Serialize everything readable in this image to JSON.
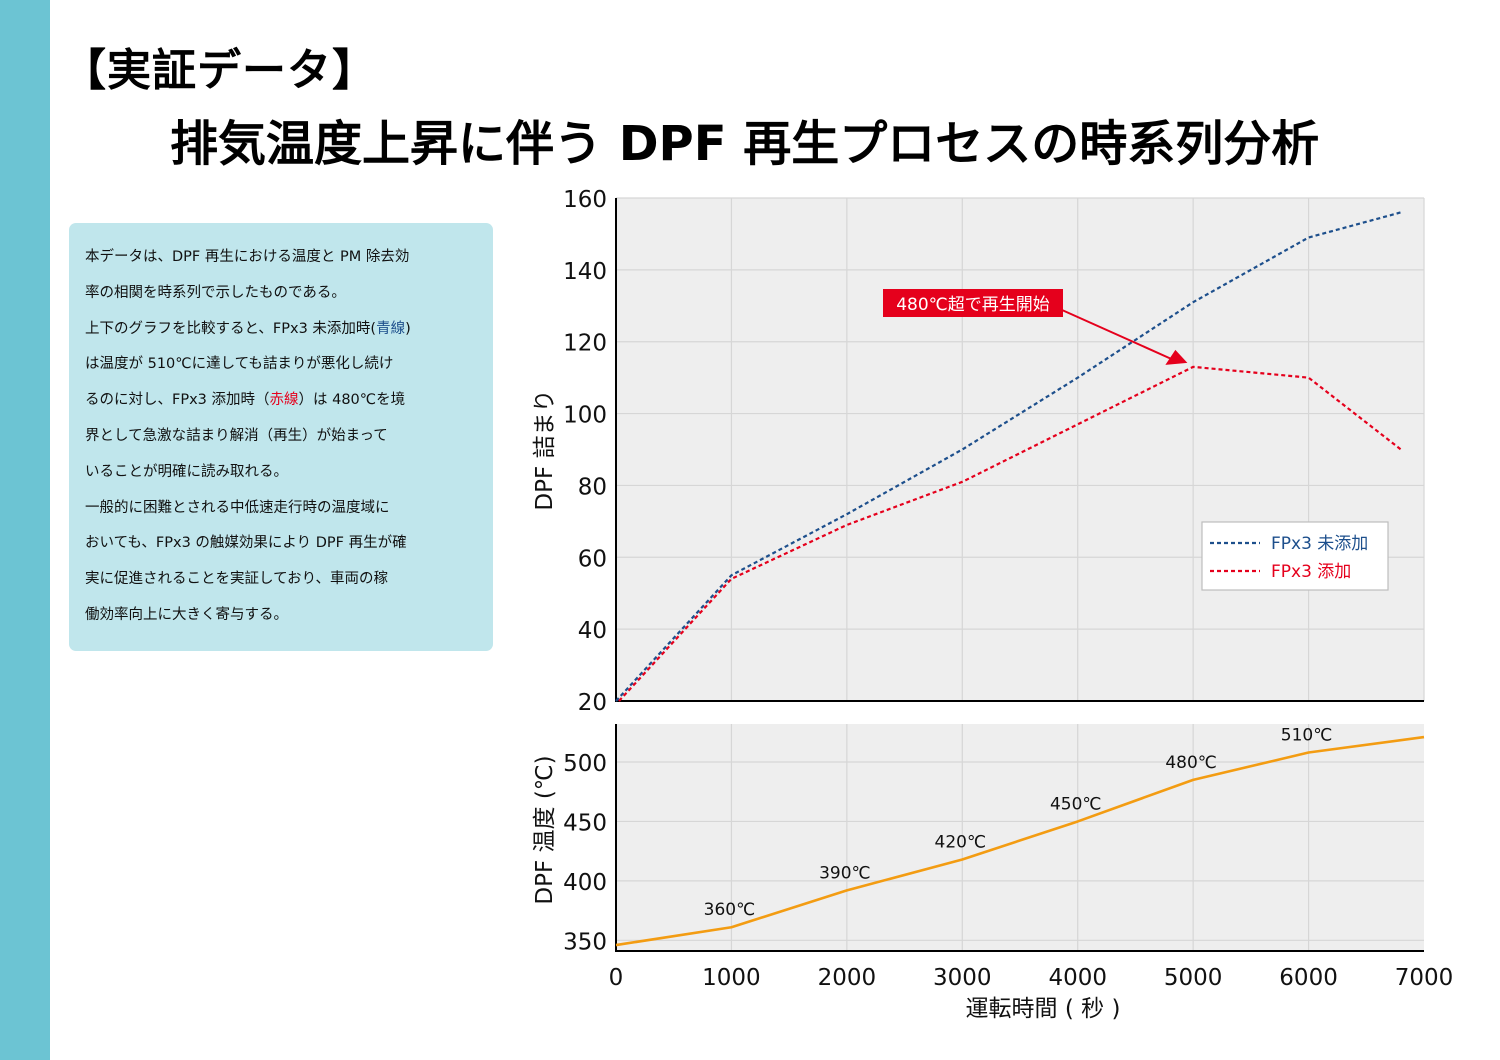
{
  "header": {
    "title_line1": "【実証データ】",
    "title_line2": "排気温度上昇に伴う DPF 再生プロセスの時系列分析"
  },
  "description": {
    "lines": [
      [
        {
          "t": "本データは、DPF 再生における温度と PM 除去効"
        }
      ],
      [
        {
          "t": "率の相関を時系列で示したものである。"
        }
      ],
      [
        {
          "t": "上下のグラフを比較すると、FPx3 未添加時("
        },
        {
          "t": "青線",
          "c": "blue"
        },
        {
          "t": ")"
        }
      ],
      [
        {
          "t": "は温度が 510℃に達しても詰まりが悪化し続け"
        }
      ],
      [
        {
          "t": "るのに対し、FPx3 添加時（"
        },
        {
          "t": "赤線",
          "c": "red"
        },
        {
          "t": "）は 480℃を境"
        }
      ],
      [
        {
          "t": "界として急激な詰まり解消（再生）が始まって"
        }
      ],
      [
        {
          "t": "いることが明確に読み取れる。"
        }
      ],
      [
        {
          "t": "一般的に困難とされる中低速走行時の温度域に"
        }
      ],
      [
        {
          "t": "おいても、FPx3 の触媒効果により DPF 再生が確"
        }
      ],
      [
        {
          "t": "実に促進されることを実証しており、車両の稼"
        }
      ],
      [
        {
          "t": "働効率向上に大きく寄与する。"
        }
      ]
    ]
  },
  "colors": {
    "blue": "#1d4f8c",
    "red": "#e5001c",
    "orange": "#f39c12",
    "plot_bg": "#eeeeee",
    "grid": "#d6d6d6"
  },
  "chart_data": [
    {
      "type": "line",
      "title": "",
      "xlabel": "",
      "ylabel": "DPF 詰まり",
      "xlim": [
        0,
        7000
      ],
      "ylim": [
        20,
        160
      ],
      "yticks": [
        20,
        40,
        60,
        80,
        100,
        120,
        140,
        160
      ],
      "xgrid": [
        1000,
        2000,
        3000,
        4000,
        5000,
        6000
      ],
      "grid": true,
      "legend_position": "right",
      "series": [
        {
          "name": "FPx3 未添加",
          "color_key": "blue",
          "style": "dotted",
          "x": [
            0,
            1000,
            2000,
            3000,
            4000,
            5000,
            6000,
            6800
          ],
          "y": [
            20,
            55,
            72,
            90,
            110,
            131,
            149,
            156
          ]
        },
        {
          "name": "FPx3 添加",
          "color_key": "red",
          "style": "dotted",
          "x": [
            0,
            1000,
            2000,
            3000,
            4000,
            5000,
            6000,
            6800
          ],
          "y": [
            20,
            54,
            69,
            81,
            97,
            113,
            110,
            90
          ]
        }
      ],
      "annotation": {
        "text": "480℃超で再生開始",
        "target_x": 4950,
        "target_y": 113
      }
    },
    {
      "type": "line",
      "title": "",
      "xlabel": "運転時間 ( 秒 )",
      "ylabel": "DPF 温度 (℃)",
      "xlim": [
        0,
        7000
      ],
      "ylim": [
        341,
        532
      ],
      "xticks": [
        0,
        1000,
        2000,
        3000,
        4000,
        5000,
        6000,
        7000
      ],
      "yticks": [
        350,
        400,
        450,
        500
      ],
      "grid": true,
      "series": [
        {
          "name": "DPF 温度",
          "color_key": "orange",
          "style": "solid",
          "x": [
            0,
            1000,
            2000,
            3000,
            4000,
            5000,
            6000,
            7000
          ],
          "y": [
            346,
            361,
            392,
            418,
            450,
            485,
            508,
            521
          ]
        }
      ],
      "data_labels": [
        {
          "x": 1000,
          "y": 361,
          "text": "360℃"
        },
        {
          "x": 2000,
          "y": 392,
          "text": "390℃"
        },
        {
          "x": 3000,
          "y": 418,
          "text": "420℃"
        },
        {
          "x": 4000,
          "y": 450,
          "text": "450℃"
        },
        {
          "x": 5000,
          "y": 485,
          "text": "480℃"
        },
        {
          "x": 6000,
          "y": 508,
          "text": "510℃"
        }
      ]
    }
  ]
}
